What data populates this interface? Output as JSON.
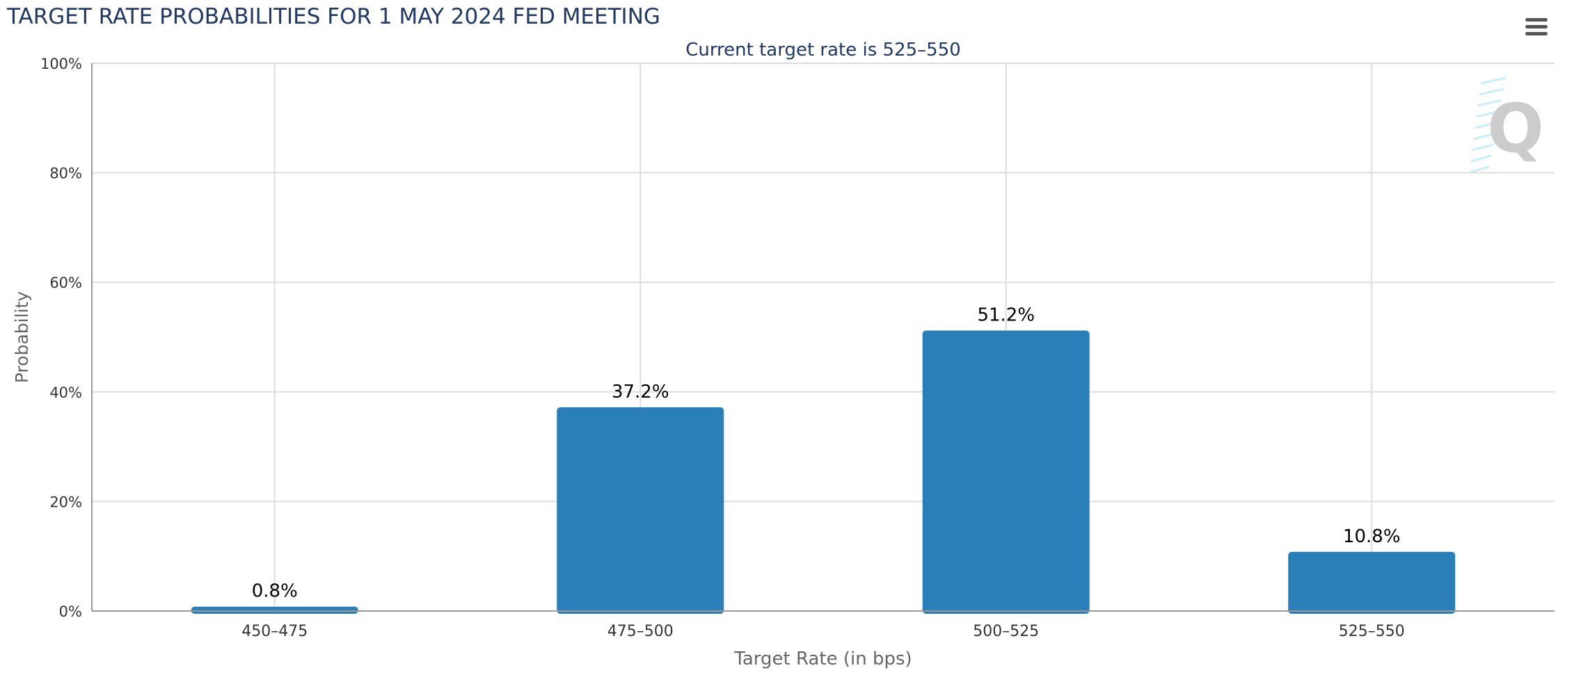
{
  "chart_data": {
    "type": "bar",
    "title": "TARGET RATE PROBABILITIES FOR 1 MAY 2024 FED MEETING",
    "subtitle": "Current target rate is 525–550",
    "xlabel": "Target Rate (in bps)",
    "ylabel": "Probability",
    "categories": [
      "450–475",
      "475–500",
      "500–525",
      "525–550"
    ],
    "values": [
      0.8,
      37.2,
      51.2,
      10.8
    ],
    "data_labels": [
      "0.8%",
      "37.2%",
      "51.2%",
      "10.8%"
    ],
    "ylim": [
      0,
      100
    ],
    "yticks": [
      "0%",
      "20%",
      "40%",
      "60%",
      "80%",
      "100%"
    ],
    "grid": true,
    "legend": "none",
    "colors": {
      "bar": "#2a7fb8",
      "title": "#1f3864",
      "grid": "#dddddd",
      "axis": "#999999",
      "axis_title": "#666666",
      "tick_label": "#333333",
      "watermark": "#cccccc",
      "watermark_accent": "#c9eef7"
    }
  },
  "ui": {
    "menu_icon": "hamburger-menu-icon",
    "watermark_letter": "Q"
  }
}
